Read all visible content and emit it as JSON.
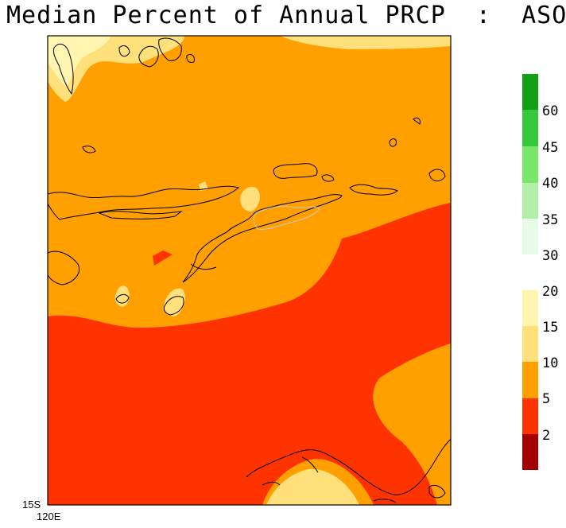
{
  "title": "Median Percent of Annual PRCP  :  ASO",
  "axes": {
    "lat_label": "15S",
    "lon_label": "120E"
  },
  "colors": {
    "c_0_2": "#a50000",
    "c_2_5": "#ff3300",
    "c_5_10": "#ffa000",
    "c_10_15": "#ffe07a",
    "c_15_20": "#fff5b0",
    "c_30_35": "#e8fbe8",
    "c_35_40": "#b2f0a8",
    "c_40_45": "#78e86a",
    "c_45_60": "#34c83a",
    "c_60_up": "#14a014",
    "coast": "#000000",
    "gray_coast": "#bbbbbb"
  },
  "colorbar": {
    "upper_labels": [
      "60",
      "45",
      "40",
      "35",
      "30"
    ],
    "lower_labels": [
      "20",
      "15",
      "10",
      "5",
      "2"
    ]
  }
}
